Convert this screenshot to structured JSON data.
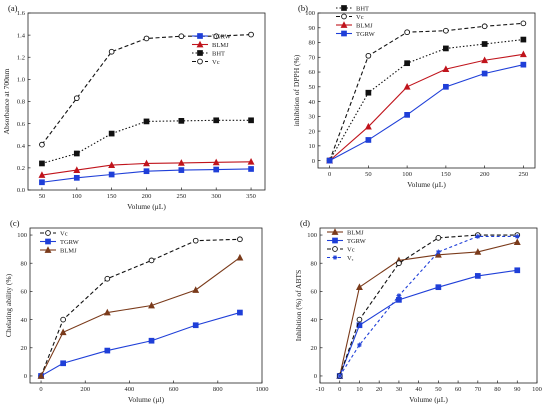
{
  "chart_data": [
    {
      "type": "line",
      "panel_label": "(a)",
      "xlabel": "Volume (μL)",
      "ylabel": "Absorbance at 700nm",
      "xlim": [
        30,
        370
      ],
      "ylim": [
        0,
        1.6
      ],
      "xticks": [
        50,
        100,
        150,
        200,
        250,
        300,
        350
      ],
      "yticks": [
        0.0,
        0.2,
        0.4,
        0.6,
        0.8,
        1.0,
        1.2,
        1.4,
        1.6
      ],
      "ytick_decimals": 1,
      "legend_position": "right",
      "x": [
        50,
        100,
        150,
        200,
        250,
        300,
        350
      ],
      "series": [
        {
          "name": "TGRW",
          "color": "#1f3fd8",
          "marker": "square",
          "filled": true,
          "dash": "",
          "values": [
            0.07,
            0.11,
            0.14,
            0.17,
            0.18,
            0.185,
            0.19
          ]
        },
        {
          "name": "BLMJ",
          "color": "#c0141c",
          "marker": "triangle",
          "filled": true,
          "dash": "",
          "values": [
            0.135,
            0.18,
            0.225,
            0.24,
            0.245,
            0.25,
            0.255
          ]
        },
        {
          "name": "BHT",
          "color": "#111111",
          "marker": "square",
          "filled": true,
          "dash": "1.5,2",
          "values": [
            0.24,
            0.33,
            0.51,
            0.62,
            0.625,
            0.63,
            0.63
          ]
        },
        {
          "name": "Vc",
          "color": "#111111",
          "marker": "circle",
          "filled": false,
          "dash": "4,2.5",
          "values": [
            0.41,
            0.83,
            1.25,
            1.37,
            1.39,
            1.39,
            1.405
          ]
        }
      ]
    },
    {
      "type": "line",
      "panel_label": "(b)",
      "xlabel": "Volume (μL)",
      "ylabel": "inhibition of DPPH (%)",
      "xlim": [
        -15,
        265
      ],
      "ylim": [
        -5,
        100
      ],
      "xticks": [
        0,
        50,
        100,
        150,
        200,
        250
      ],
      "yticks": [
        0,
        10,
        20,
        30,
        40,
        50,
        60,
        70,
        80,
        90,
        100
      ],
      "ytick_decimals": 0,
      "legend_position": "top-left",
      "x": [
        0,
        50,
        100,
        150,
        200,
        250
      ],
      "series": [
        {
          "name": "BHT",
          "color": "#111111",
          "marker": "square",
          "filled": true,
          "dash": "1.5,2",
          "values": [
            0,
            46,
            66,
            76,
            79,
            82
          ]
        },
        {
          "name": "Vc",
          "color": "#111111",
          "marker": "circle",
          "filled": false,
          "dash": "4,2.5",
          "values": [
            0,
            71,
            87,
            88,
            91,
            93
          ]
        },
        {
          "name": "BLMJ",
          "color": "#c0141c",
          "marker": "triangle",
          "filled": true,
          "dash": "",
          "values": [
            0,
            23,
            50,
            62,
            68,
            72
          ]
        },
        {
          "name": "TGRW",
          "color": "#1f3fd8",
          "marker": "square",
          "filled": true,
          "dash": "",
          "values": [
            0,
            14,
            31,
            50,
            59,
            65
          ]
        }
      ]
    },
    {
      "type": "line",
      "panel_label": "(c)",
      "xlabel": "Volume (μl)",
      "ylabel": "Chelating ability (%)",
      "xlim": [
        -50,
        1000
      ],
      "ylim": [
        -5,
        105
      ],
      "xticks": [
        0,
        200,
        400,
        600,
        800,
        1000
      ],
      "yticks": [
        0,
        20,
        40,
        60,
        80,
        100
      ],
      "ytick_decimals": 0,
      "legend_position": "top-left",
      "x": [
        0,
        100,
        300,
        500,
        700,
        900
      ],
      "series": [
        {
          "name": "Vc",
          "color": "#111111",
          "marker": "circle",
          "filled": false,
          "dash": "4,2.5",
          "values": [
            0,
            40,
            69,
            82,
            96,
            97
          ]
        },
        {
          "name": "TGRW",
          "color": "#1f3fd8",
          "marker": "square",
          "filled": true,
          "dash": "",
          "values": [
            0,
            9,
            18,
            25,
            36,
            45
          ]
        },
        {
          "name": "BLMJ",
          "color": "#7a3a1a",
          "marker": "triangle",
          "filled": true,
          "dash": "",
          "values": [
            0,
            31,
            45,
            50,
            61,
            84
          ]
        }
      ]
    },
    {
      "type": "line",
      "panel_label": "(d)",
      "xlabel": "Volume (μL)",
      "ylabel": "Inhibition (%) of ABTS",
      "xlim": [
        -10,
        100
      ],
      "ylim": [
        -5,
        105
      ],
      "xticks": [
        -10,
        0,
        10,
        20,
        30,
        40,
        50,
        60,
        70,
        80,
        90,
        100
      ],
      "yticks": [
        0,
        20,
        40,
        60,
        80,
        100
      ],
      "ytick_decimals": 0,
      "legend_position": "top-left",
      "x": [
        0,
        10,
        30,
        50,
        70,
        90
      ],
      "series": [
        {
          "name": "BLMJ",
          "color": "#7a3a1a",
          "marker": "triangle",
          "filled": true,
          "dash": "",
          "values": [
            0,
            63,
            82,
            86,
            88,
            95
          ]
        },
        {
          "name": "TGRW",
          "color": "#1f3fd8",
          "marker": "square",
          "filled": true,
          "dash": "",
          "values": [
            0,
            36,
            54,
            63,
            71,
            75
          ]
        },
        {
          "name": "Vc",
          "color": "#111111",
          "marker": "circle",
          "filled": false,
          "dash": "4,2.5",
          "values": [
            0,
            40,
            80,
            98,
            100,
            100
          ]
        },
        {
          "name": "Vₑ",
          "color": "#1f3fd8",
          "marker": "star",
          "filled": false,
          "dash": "3,2.5",
          "values": [
            0,
            22,
            57,
            88,
            99,
            99
          ]
        }
      ]
    }
  ]
}
